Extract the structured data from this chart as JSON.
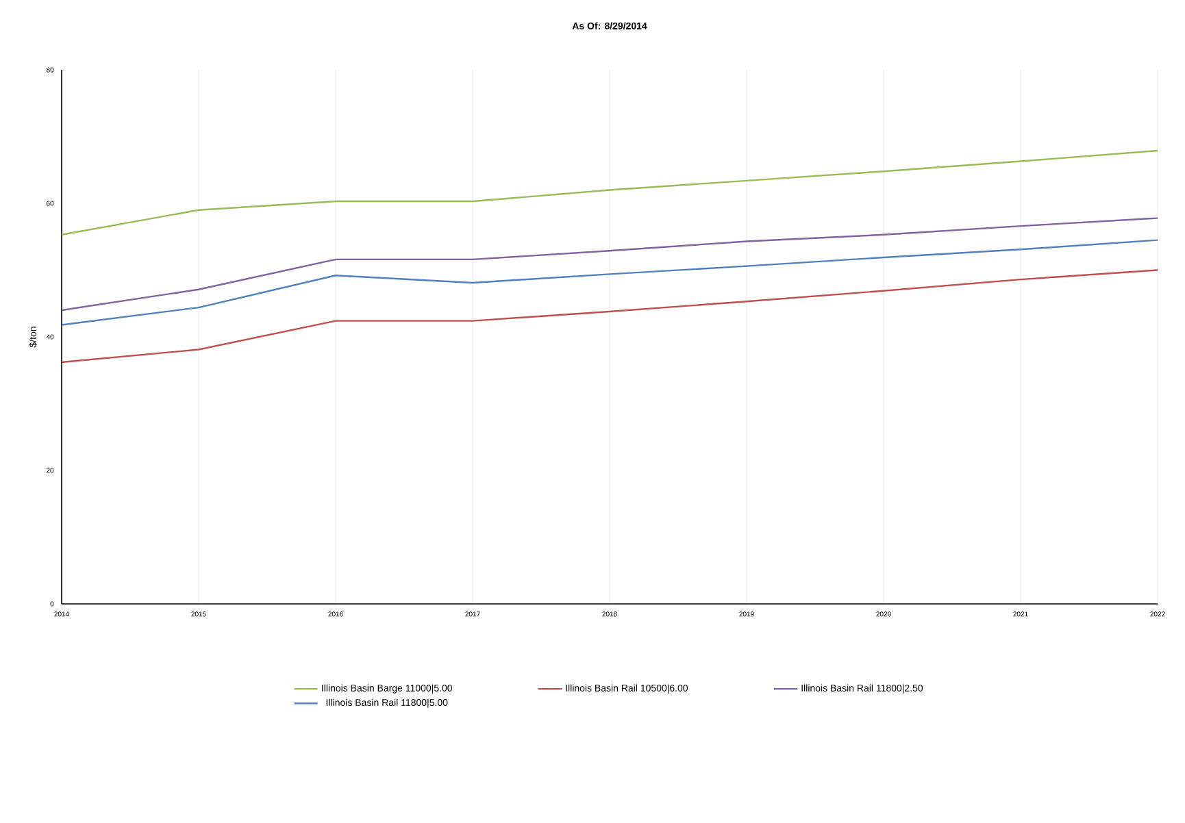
{
  "chart_data": {
    "type": "line",
    "title": "As Of: 8/29/2014",
    "ylabel": "$/ton",
    "x": [
      2014,
      2015,
      2016,
      2017,
      2018,
      2019,
      2020,
      2021,
      2022
    ],
    "series": [
      {
        "name": "Illinois Basin Barge 11000|5.00",
        "color": "#9bbb59",
        "values": [
          55.3,
          59.0,
          60.3,
          60.3,
          62.0,
          63.4,
          64.8,
          66.3,
          67.9
        ]
      },
      {
        "name": "Illinois Basin Rail 10500|6.00",
        "color": "#c0504d",
        "values": [
          36.2,
          38.1,
          42.4,
          42.4,
          43.8,
          45.3,
          46.9,
          48.6,
          50.0
        ]
      },
      {
        "name": "Illinois Basin Rail 11800|2.50",
        "color": "#8064a2",
        "values": [
          44.0,
          47.1,
          51.6,
          51.6,
          52.9,
          54.3,
          55.3,
          56.6,
          57.8
        ]
      },
      {
        "name": "Illinois Basin Rail 11800|5.00",
        "color": "#4f81bd",
        "values": [
          41.8,
          44.4,
          49.2,
          48.1,
          49.4,
          50.6,
          51.9,
          53.1,
          54.5
        ]
      }
    ],
    "xlim": [
      2014,
      2022
    ],
    "ylim": [
      0,
      80
    ],
    "xticks": [
      2014,
      2015,
      2016,
      2017,
      2018,
      2019,
      2020,
      2021,
      2022
    ],
    "yticks": [
      0,
      20,
      40,
      60,
      80
    ],
    "grid": "x",
    "legend": "bottom",
    "marker": "none",
    "line_style": "solid"
  }
}
